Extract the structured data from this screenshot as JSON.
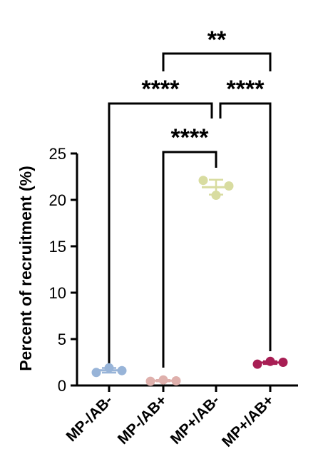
{
  "chart_data": {
    "type": "scatter",
    "ylabel": "Percent of recruitment (%)",
    "xlabel": "",
    "ylim": [
      0,
      25
    ],
    "yticks": [
      "0",
      "5",
      "10",
      "15",
      "20",
      "25"
    ],
    "categories": [
      "MP-/AB-",
      "MP-/AB+",
      "MP+/AB-",
      "MP+/AB+"
    ],
    "series": [
      {
        "category": "MP-/AB-",
        "color": "#98b4d8",
        "points": [
          1.4,
          1.9,
          1.6
        ],
        "mean": 1.63,
        "error": 0.25
      },
      {
        "category": "MP-/AB+",
        "color": "#dfb0ac",
        "points": [
          0.45,
          0.6,
          0.5
        ],
        "mean": 0.52,
        "error": 0.08
      },
      {
        "category": "MP+/AB-",
        "color": "#d8dca0",
        "points": [
          22.1,
          20.5,
          21.5
        ],
        "mean": 21.37,
        "error": 0.8
      },
      {
        "category": "MP+/AB+",
        "color": "#a81e54",
        "points": [
          2.3,
          2.6,
          2.5
        ],
        "mean": 2.47,
        "error": 0.15
      }
    ],
    "comparisons": [
      {
        "groups": [
          "MP-/AB+",
          "MP+/AB-"
        ],
        "label": "****"
      },
      {
        "groups": [
          "MP-/AB-",
          "MP+/AB-"
        ],
        "label": "****"
      },
      {
        "groups": [
          "MP+/AB-",
          "MP+/AB+"
        ],
        "label": "****"
      },
      {
        "groups": [
          "MP-/AB+",
          "MP+/AB+"
        ],
        "label": "**"
      }
    ],
    "grid": false,
    "legend": "none"
  }
}
